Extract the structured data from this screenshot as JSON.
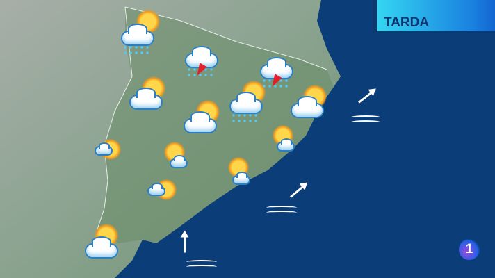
{
  "title": "TARDA",
  "logo": "1",
  "colors": {
    "sea": "#0b3d78",
    "land": "#8fa596",
    "title_bg": "#35d6f2",
    "title_text": "#0d3570"
  },
  "symbols": [
    {
      "type": "sun-cloud-rain"
    },
    {
      "type": "cloud-rain-storm"
    },
    {
      "type": "cloud-rain-storm"
    },
    {
      "type": "sun-cloud"
    },
    {
      "type": "sun-cloud-rain"
    },
    {
      "type": "sun-cloud"
    },
    {
      "type": "sun-cloud"
    },
    {
      "type": "sun-small-cloud"
    },
    {
      "type": "sun-small-cloud"
    },
    {
      "type": "sun-small-cloud"
    },
    {
      "type": "sun-small-cloud"
    },
    {
      "type": "sun-small-cloud"
    },
    {
      "type": "sun-cloud"
    }
  ],
  "sea_state": [
    {
      "wind": "northeast",
      "waves": "wave-icon"
    },
    {
      "wind": "northeast",
      "waves": "wave-icon"
    },
    {
      "wind": "north",
      "waves": "wave-icon"
    }
  ]
}
